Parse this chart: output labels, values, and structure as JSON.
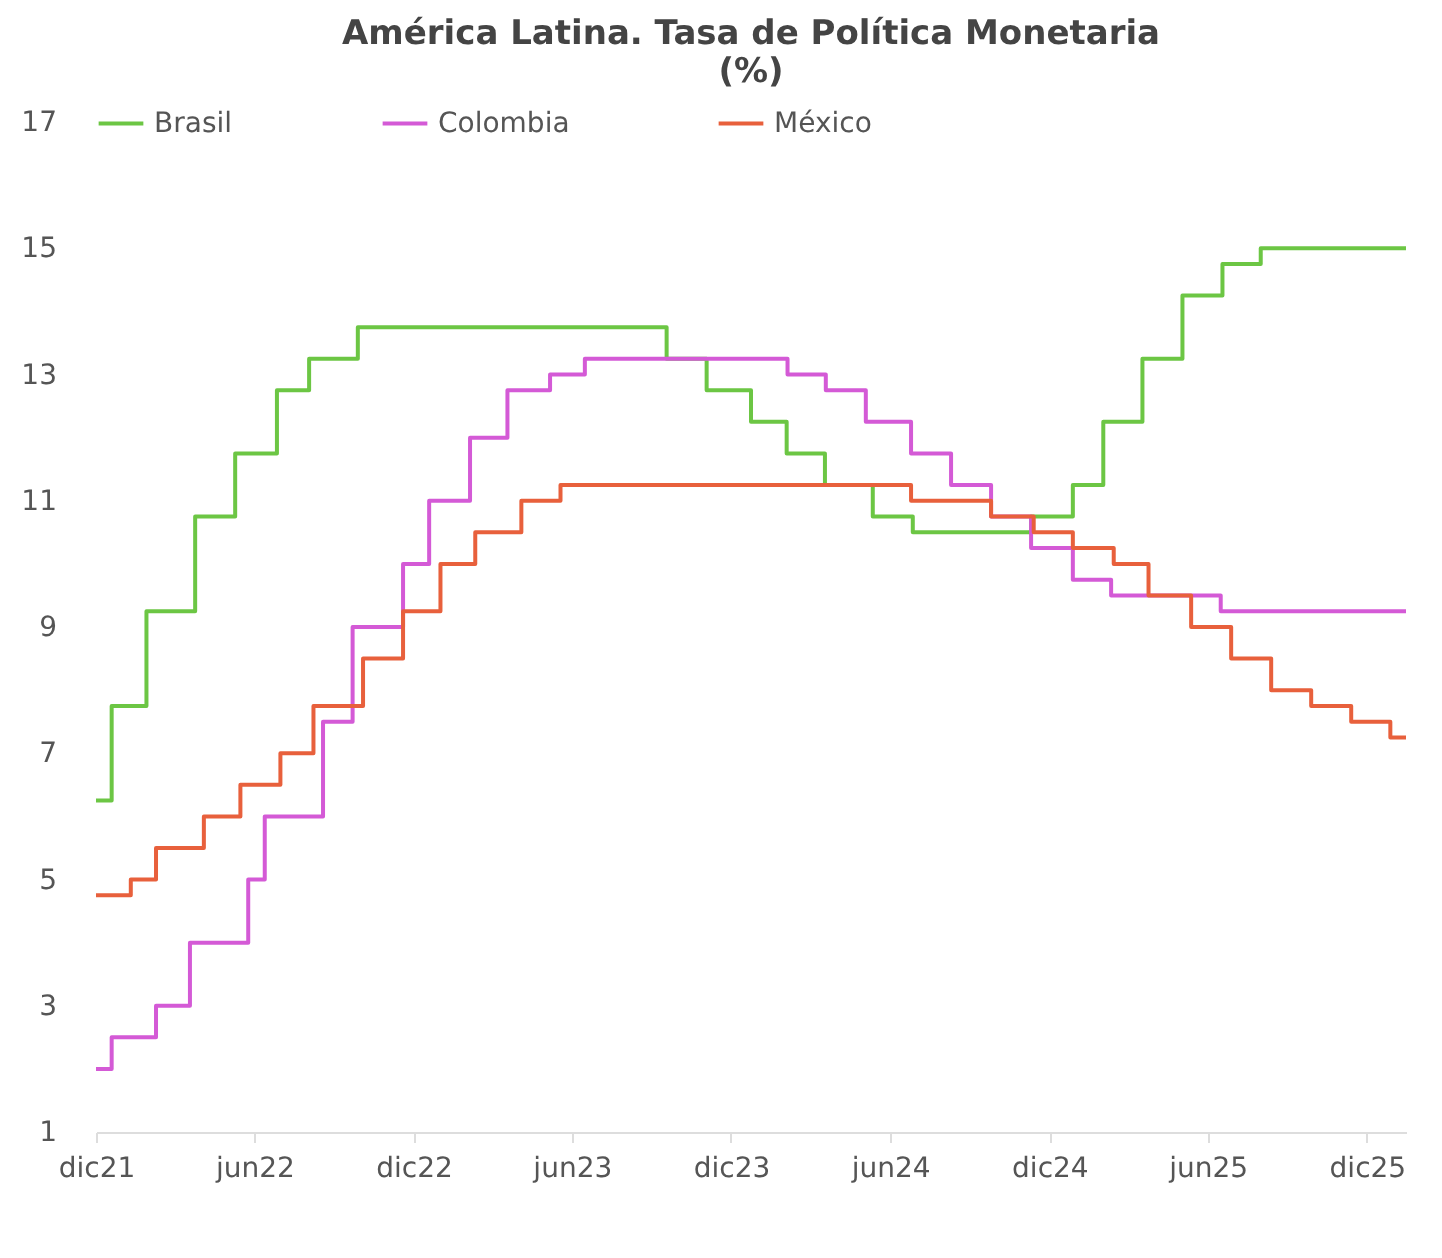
{
  "chart_data": {
    "type": "step",
    "title": "América Latina. Tasa de Política Monetaria",
    "subtitle": "(%)",
    "series": [
      {
        "name": "Brasil",
        "color": "#6cc644",
        "x": [
          "2021-12-01",
          "2021-12-19",
          "2022-01-28",
          "2022-03-25",
          "2022-05-10",
          "2022-06-27",
          "2022-08-03",
          "2022-09-28",
          "2023-09-18",
          "2023-11-03",
          "2023-12-24",
          "2024-02-03",
          "2024-03-18",
          "2024-05-12",
          "2024-06-27",
          "2024-11-10",
          "2024-12-28",
          "2025-02-01",
          "2025-03-18",
          "2025-05-03",
          "2025-06-18",
          "2025-08-01",
          "2026-01-15"
        ],
        "values": [
          6.25,
          7.75,
          9.25,
          10.75,
          11.75,
          12.75,
          13.25,
          13.75,
          13.25,
          12.75,
          12.25,
          11.75,
          11.25,
          10.75,
          10.5,
          10.75,
          11.25,
          12.25,
          13.25,
          14.25,
          14.75,
          15,
          15
        ]
      },
      {
        "name": "Colombia",
        "color": "#d45ad6",
        "x": [
          "2021-12-01",
          "2021-12-19",
          "2022-02-08",
          "2022-03-19",
          "2022-05-25",
          "2022-06-13",
          "2022-08-19",
          "2022-09-22",
          "2022-11-19",
          "2022-12-19",
          "2023-02-04",
          "2023-03-19",
          "2023-05-07",
          "2023-06-16",
          "2024-02-04",
          "2024-03-19",
          "2024-05-04",
          "2024-06-25",
          "2024-08-10",
          "2024-09-25",
          "2024-11-10",
          "2024-12-28",
          "2025-02-10",
          "2025-06-16",
          "2026-01-15"
        ],
        "values": [
          2,
          2.5,
          3,
          4,
          5,
          6,
          7.5,
          9,
          10,
          11,
          12,
          12.75,
          13,
          13.25,
          13,
          12.75,
          12.25,
          11.75,
          11.25,
          10.75,
          10.25,
          9.75,
          9.5,
          9.25,
          9.25
        ]
      },
      {
        "name": "México",
        "color": "#e8603c",
        "x": [
          "2021-12-01",
          "2022-01-10",
          "2022-02-08",
          "2022-04-04",
          "2022-05-16",
          "2022-07-01",
          "2022-08-08",
          "2022-10-04",
          "2022-11-19",
          "2023-01-01",
          "2023-02-10",
          "2023-04-04",
          "2023-05-19",
          "2024-06-25",
          "2024-09-25",
          "2024-11-13",
          "2024-12-28",
          "2025-02-13",
          "2025-03-25",
          "2025-05-13",
          "2025-06-28",
          "2025-08-13",
          "2025-09-28",
          "2025-11-13",
          "2025-12-28",
          "2026-01-15"
        ],
        "values": [
          4.75,
          5,
          5.5,
          6,
          6.5,
          7,
          7.75,
          8.5,
          9.25,
          10,
          10.5,
          11,
          11.25,
          11,
          10.75,
          10.5,
          10.25,
          10,
          9.5,
          9,
          8.5,
          8,
          7.75,
          7.5,
          7.25,
          7.25
        ]
      }
    ],
    "xlim": [
      "2021-12-01",
      "2026-01-15"
    ],
    "xticks": [
      {
        "value": "2021-12",
        "label": "dic21"
      },
      {
        "value": "2022-06",
        "label": "jun22"
      },
      {
        "value": "2022-12",
        "label": "dic22"
      },
      {
        "value": "2023-06",
        "label": "jun23"
      },
      {
        "value": "2023-12",
        "label": "dic23"
      },
      {
        "value": "2024-06",
        "label": "jun24"
      },
      {
        "value": "2024-12",
        "label": "dic24"
      },
      {
        "value": "2025-06",
        "label": "jun25"
      },
      {
        "value": "2025-12",
        "label": "dic25"
      }
    ],
    "ylim": [
      1,
      17
    ],
    "yticks": [
      1,
      3,
      5,
      7,
      9,
      11,
      13,
      15,
      17
    ],
    "grid": false,
    "legend": "top",
    "line_style": "solid"
  }
}
